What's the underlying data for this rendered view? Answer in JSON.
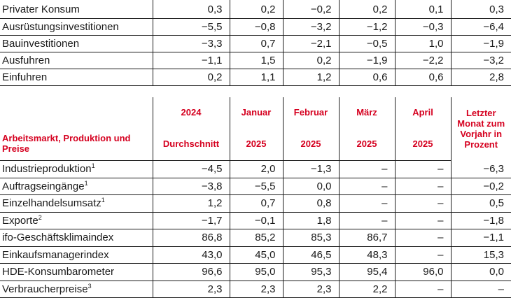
{
  "top_table": {
    "rows": [
      {
        "label": "Privater Konsum",
        "values": [
          "0,3",
          "0,2",
          "−0,2",
          "0,2",
          "0,1",
          "0,3"
        ]
      },
      {
        "label": "Ausrüstungsinvestitionen",
        "values": [
          "−5,5",
          "−0,8",
          "−3,2",
          "−1,2",
          "−0,3",
          "−6,4"
        ]
      },
      {
        "label": "Bauinvestitionen",
        "values": [
          "−3,3",
          "0,7",
          "−2,1",
          "−0,5",
          "1,0",
          "−1,9"
        ]
      },
      {
        "label": "Ausfuhren",
        "values": [
          "−1,1",
          "1,5",
          "0,2",
          "−1,9",
          "−2,2",
          "−3,2"
        ]
      },
      {
        "label": "Einfuhren",
        "values": [
          "0,2",
          "1,1",
          "1,2",
          "0,6",
          "0,6",
          "2,8"
        ]
      }
    ]
  },
  "bottom_table": {
    "section_title": "Arbeitsmarkt, Produktion und Preise",
    "header_row1": [
      "2024",
      "Januar",
      "Februar",
      "März",
      "April",
      "Letzter Monat zum Vorjahr in Prozent"
    ],
    "header_row2": [
      "Durchschnitt",
      "2025",
      "2025",
      "2025",
      "2025"
    ],
    "rows": [
      {
        "label": "Industrieproduktion",
        "sup": "1",
        "values": [
          "−4,5",
          "2,0",
          "−1,3",
          "–",
          "–",
          "−6,3"
        ]
      },
      {
        "label": "Auftragseingänge",
        "sup": "1",
        "values": [
          "−3,8",
          "−5,5",
          "0,0",
          "–",
          "–",
          "−0,2"
        ]
      },
      {
        "label": "Einzelhandelsumsatz",
        "sup": "1",
        "values": [
          "1,2",
          "0,7",
          "0,8",
          "–",
          "–",
          "0,5"
        ]
      },
      {
        "label": "Exporte",
        "sup": "2",
        "values": [
          "−1,7",
          "−0,1",
          "1,8",
          "–",
          "–",
          "−1,8"
        ]
      },
      {
        "label": "ifo-Geschäftsklimaindex",
        "sup": "",
        "values": [
          "86,8",
          "85,2",
          "85,3",
          "86,7",
          "–",
          "−1,1"
        ]
      },
      {
        "label": "Einkaufsmanagerindex",
        "sup": "",
        "values": [
          "43,0",
          "45,0",
          "46,5",
          "48,3",
          "–",
          "15,3"
        ]
      },
      {
        "label": "HDE-Konsumbarometer",
        "sup": "",
        "values": [
          "96,6",
          "95,0",
          "95,3",
          "95,4",
          "96,0",
          "0,0"
        ]
      },
      {
        "label": "Verbraucherpreise",
        "sup": "3",
        "values": [
          "2,3",
          "2,3",
          "2,3",
          "2,2",
          "–",
          "–"
        ]
      }
    ]
  },
  "colors": {
    "accent": "#d5001f",
    "text": "#1a1a1a"
  }
}
